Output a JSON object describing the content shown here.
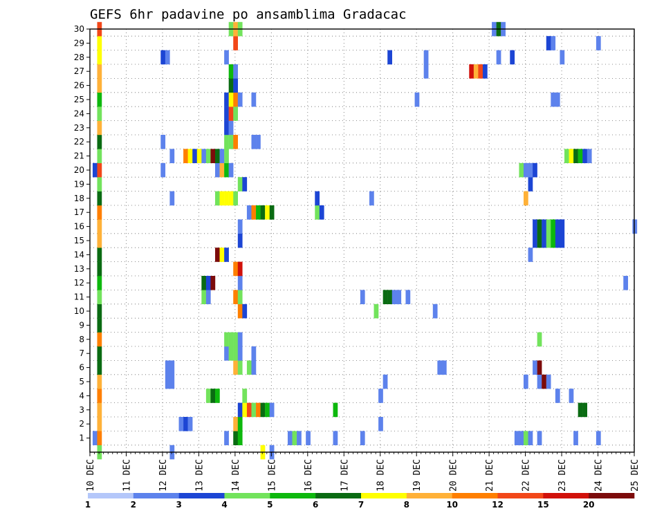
{
  "chart_data": {
    "type": "heatmap",
    "title": "GEFS 6hr padavine po ansamblima Gradacac",
    "x_ticks": [
      "10 DEC",
      "11 DEC",
      "12 DEC",
      "13 DEC",
      "14 DEC",
      "15 DEC",
      "16 DEC",
      "17 DEC",
      "18 DEC",
      "19 DEC",
      "20 DEC",
      "21 DEC",
      "22 DEC",
      "23 DEC",
      "24 DEC",
      "25 DEC"
    ],
    "y_ticks": [
      "1",
      "2",
      "3",
      "4",
      "5",
      "6",
      "7",
      "8",
      "9",
      "10",
      "11",
      "12",
      "13",
      "14",
      "15",
      "16",
      "17",
      "18",
      "19",
      "20",
      "21",
      "22",
      "23",
      "24",
      "25",
      "26",
      "27",
      "28",
      "29",
      "30"
    ],
    "x_range": [
      "10 DEC 00Z",
      "25 DEC 00Z"
    ],
    "y_range": [
      0,
      30
    ],
    "x_step_hours": 6,
    "grid": true,
    "colorbar": {
      "labels": [
        "1",
        "2",
        "3",
        "4",
        "5",
        "6",
        "7",
        "8",
        "10",
        "12",
        "15",
        "20"
      ],
      "colors": [
        "#b4c7fa",
        "#5d82ec",
        "#1c45d4",
        "#72e35c",
        "#0db80d",
        "#0a6b12",
        "#ffff00",
        "#ffb138",
        "#ff7f00",
        "#f24719",
        "#d1110a",
        "#7c0b0b"
      ]
    },
    "cells": [
      [
        -1,
        3
      ],
      [
        0,
        4
      ],
      [
        6,
        1
      ],
      [
        11,
        3
      ],
      [
        -1,
        2
      ],
      [
        0,
        6
      ],
      [
        -1,
        4
      ],
      [
        0,
        6
      ],
      [
        12,
        6
      ],
      [
        15,
        5
      ],
      [
        18,
        7
      ],
      [
        19,
        5
      ],
      [
        20,
        6
      ],
      [
        21,
        5
      ],
      [
        22,
        1
      ],
      [
        23,
        5
      ],
      [
        24,
        2
      ],
      [
        25,
        6
      ],
      [
        26,
        6
      ],
      [
        27,
        6
      ],
      [
        28,
        6
      ],
      [
        -1,
        4
      ],
      [
        0,
        7
      ],
      [
        22,
        3
      ],
      [
        25,
        3
      ],
      [
        27,
        5
      ],
      [
        28,
        3
      ],
      [
        29,
        3
      ],
      [
        30,
        3
      ],
      [
        31,
        3
      ],
      [
        32,
        3
      ],
      [
        37,
        1
      ],
      [
        42,
        1
      ],
      [
        43,
        1
      ],
      [
        44,
        1
      ],
      [
        45,
        1
      ],
      [
        46,
        1
      ],
      [
        52,
        1
      ],
      [
        53,
        1
      ],
      [
        54,
        1
      ],
      [
        55,
        1
      ],
      [
        56,
        1
      ],
      [
        57,
        1
      ],
      [
        58,
        1
      ],
      [
        59,
        1
      ],
      [
        60,
        1
      ],
      [
        61,
        1
      ],
      [
        62,
        1
      ],
      [
        63,
        1
      ],
      [
        64,
        1
      ],
      [
        65,
        1
      ],
      [
        66,
        1
      ],
      [
        67,
        1
      ],
      [
        68,
        1
      ],
      [
        69,
        1
      ],
      [
        70,
        1
      ],
      [
        71,
        1
      ],
      [
        72,
        1
      ],
      [
        73,
        1
      ],
      [
        74,
        1
      ],
      [
        75,
        1
      ],
      [
        76,
        1
      ],
      [
        77,
        1
      ],
      [
        78,
        1
      ],
      [
        79,
        1
      ],
      [
        80,
        1
      ],
      [
        81,
        1
      ],
      [
        82,
        1
      ],
      [
        83,
        1
      ],
      [
        84,
        1
      ],
      [
        85,
        1
      ],
      [
        86,
        1
      ],
      [
        87,
        1
      ],
      [
        88,
        1
      ],
      [
        89,
        1
      ],
      [
        90,
        1
      ],
      [
        91,
        1
      ],
      [
        92,
        1
      ],
      [
        93,
        1
      ],
      [
        94,
        1
      ],
      [
        95,
        1
      ],
      [
        96,
        1
      ],
      [
        97,
        1
      ],
      [
        98,
        1
      ],
      [
        99,
        1
      ],
      [
        100,
        1
      ],
      [
        101,
        1
      ],
      [
        102,
        1
      ],
      [
        103,
        1
      ],
      [
        104,
        1
      ],
      [
        105,
        1
      ],
      [
        106,
        1
      ],
      [
        107,
        1
      ],
      [
        108,
        1
      ],
      [
        109,
        1
      ],
      [
        110,
        1
      ],
      [
        111,
        1
      ],
      [
        112,
        1
      ],
      [
        113,
        1
      ],
      [
        114,
        1
      ],
      [
        115,
        1
      ],
      [
        116,
        1
      ],
      [
        117,
        1
      ],
      [
        118,
        1
      ],
      [
        119,
        1
      ]
    ],
    "rows": {
      "0": [
        [
          1,
          3
        ],
        [
          17,
          1
        ],
        [
          37,
          6
        ],
        [
          39,
          1
        ]
      ],
      "1": [
        [
          0,
          1
        ],
        [
          1,
          8
        ],
        [
          29,
          1
        ],
        [
          31,
          5
        ],
        [
          32,
          4
        ],
        [
          43,
          1
        ],
        [
          44,
          3
        ],
        [
          45,
          1
        ],
        [
          47,
          1
        ],
        [
          53,
          1
        ],
        [
          59,
          1
        ],
        [
          93,
          1
        ],
        [
          94,
          1
        ],
        [
          95,
          3
        ],
        [
          96,
          1
        ],
        [
          98,
          1
        ],
        [
          106,
          1
        ],
        [
          111,
          1
        ]
      ],
      "2": [
        [
          1,
          7
        ],
        [
          19,
          1
        ],
        [
          20,
          2
        ],
        [
          21,
          1
        ],
        [
          31,
          7
        ],
        [
          32,
          4
        ],
        [
          63,
          1
        ]
      ],
      "3": [
        [
          1,
          7
        ],
        [
          32,
          2
        ],
        [
          33,
          6
        ],
        [
          34,
          9
        ],
        [
          35,
          3
        ],
        [
          36,
          8
        ],
        [
          37,
          5
        ],
        [
          38,
          4
        ],
        [
          39,
          1
        ],
        [
          53,
          4
        ],
        [
          107,
          5
        ],
        [
          108,
          5
        ]
      ],
      "4": [
        [
          1,
          8
        ],
        [
          25,
          3
        ],
        [
          26,
          5
        ],
        [
          27,
          4
        ],
        [
          33,
          3
        ],
        [
          63,
          1
        ],
        [
          102,
          1
        ],
        [
          105,
          1
        ]
      ],
      "5": [
        [
          1,
          7
        ],
        [
          16,
          1
        ],
        [
          17,
          1
        ],
        [
          64,
          1
        ],
        [
          95,
          1
        ],
        [
          98,
          1
        ],
        [
          99,
          11
        ],
        [
          100,
          1
        ]
      ],
      "6": [
        [
          1,
          5
        ],
        [
          16,
          1
        ],
        [
          17,
          1
        ],
        [
          31,
          7
        ],
        [
          32,
          3
        ],
        [
          34,
          3
        ],
        [
          35,
          1
        ],
        [
          76,
          1
        ],
        [
          77,
          1
        ],
        [
          97,
          1
        ],
        [
          98,
          11
        ]
      ],
      "7": [
        [
          1,
          5
        ],
        [
          29,
          1
        ],
        [
          30,
          3
        ],
        [
          31,
          3
        ],
        [
          32,
          1
        ],
        [
          35,
          1
        ]
      ],
      "8": [
        [
          1,
          8
        ],
        [
          29,
          3
        ],
        [
          30,
          3
        ],
        [
          31,
          3
        ],
        [
          32,
          1
        ],
        [
          98,
          3
        ]
      ],
      "9": [
        [
          1,
          5
        ]
      ],
      "10": [
        [
          1,
          5
        ],
        [
          32,
          8
        ],
        [
          33,
          2
        ],
        [
          62,
          3
        ],
        [
          75,
          1
        ]
      ],
      "11": [
        [
          1,
          3
        ],
        [
          24,
          3
        ],
        [
          25,
          1
        ],
        [
          31,
          8
        ],
        [
          32,
          3
        ],
        [
          59,
          1
        ],
        [
          64,
          5
        ],
        [
          65,
          5
        ],
        [
          66,
          1
        ],
        [
          67,
          1
        ],
        [
          69,
          1
        ]
      ],
      "12": [
        [
          1,
          4
        ],
        [
          24,
          5
        ],
        [
          25,
          2
        ],
        [
          26,
          11
        ],
        [
          32,
          1
        ],
        [
          117,
          1
        ]
      ],
      "13": [
        [
          1,
          5
        ],
        [
          31,
          8
        ],
        [
          32,
          10
        ]
      ],
      "14": [
        [
          1,
          5
        ],
        [
          27,
          11
        ],
        [
          28,
          6
        ],
        [
          29,
          2
        ],
        [
          96,
          1
        ]
      ],
      "15": [
        [
          1,
          7
        ],
        [
          32,
          2
        ],
        [
          97,
          2
        ],
        [
          98,
          5
        ],
        [
          99,
          2
        ],
        [
          100,
          3
        ],
        [
          101,
          4
        ],
        [
          102,
          2
        ],
        [
          103,
          2
        ]
      ],
      "16": [
        [
          1,
          7
        ],
        [
          32,
          1
        ],
        [
          97,
          2
        ],
        [
          98,
          5
        ],
        [
          99,
          2
        ],
        [
          100,
          3
        ],
        [
          101,
          4
        ],
        [
          102,
          2
        ],
        [
          103,
          2
        ],
        [
          119,
          1
        ]
      ],
      "17": [
        [
          1,
          8
        ],
        [
          34,
          1
        ],
        [
          35,
          8
        ],
        [
          36,
          4
        ],
        [
          37,
          5
        ],
        [
          38,
          6
        ],
        [
          39,
          5
        ],
        [
          49,
          3
        ],
        [
          50,
          2
        ]
      ],
      "18": [
        [
          1,
          5
        ],
        [
          17,
          1
        ],
        [
          27,
          3
        ],
        [
          28,
          6
        ],
        [
          29,
          6
        ],
        [
          30,
          6
        ],
        [
          31,
          3
        ],
        [
          49,
          2
        ],
        [
          61,
          1
        ],
        [
          95,
          7
        ]
      ],
      "19": [
        [
          1,
          3
        ],
        [
          32,
          3
        ],
        [
          33,
          2
        ],
        [
          96,
          2
        ]
      ],
      "20": [
        [
          0,
          2
        ],
        [
          1,
          9
        ],
        [
          15,
          1
        ],
        [
          27,
          1
        ],
        [
          28,
          7
        ],
        [
          29,
          4
        ],
        [
          30,
          1
        ],
        [
          94,
          3
        ],
        [
          95,
          1
        ],
        [
          96,
          1
        ],
        [
          97,
          2
        ]
      ],
      "21": [
        [
          1,
          3
        ],
        [
          17,
          1
        ],
        [
          20,
          8
        ],
        [
          21,
          6
        ],
        [
          22,
          2
        ],
        [
          23,
          6
        ],
        [
          24,
          1
        ],
        [
          25,
          3
        ],
        [
          26,
          11
        ],
        [
          27,
          5
        ],
        [
          28,
          1
        ],
        [
          29,
          3
        ],
        [
          104,
          3
        ],
        [
          105,
          6
        ],
        [
          106,
          5
        ],
        [
          107,
          4
        ],
        [
          108,
          2
        ],
        [
          109,
          1
        ]
      ],
      "22": [
        [
          1,
          5
        ],
        [
          15,
          1
        ],
        [
          29,
          3
        ],
        [
          30,
          3
        ],
        [
          31,
          8
        ],
        [
          35,
          1
        ],
        [
          36,
          1
        ]
      ],
      "23": [
        [
          1,
          7
        ],
        [
          29,
          2
        ],
        [
          30,
          1
        ]
      ],
      "24": [
        [
          1,
          3
        ],
        [
          29,
          2
        ],
        [
          30,
          9
        ],
        [
          31,
          3
        ]
      ],
      "25": [
        [
          1,
          4
        ],
        [
          29,
          2
        ],
        [
          30,
          6
        ],
        [
          31,
          8
        ],
        [
          32,
          1
        ],
        [
          35,
          1
        ],
        [
          71,
          1
        ],
        [
          101,
          1
        ],
        [
          102,
          1
        ]
      ],
      "26": [
        [
          1,
          7
        ],
        [
          30,
          5
        ],
        [
          31,
          2
        ]
      ],
      "27": [
        [
          1,
          7
        ],
        [
          30,
          4
        ],
        [
          31,
          1
        ],
        [
          73,
          1
        ],
        [
          83,
          10
        ],
        [
          84,
          7
        ],
        [
          85,
          9
        ],
        [
          86,
          2
        ]
      ],
      "28": [
        [
          1,
          6
        ],
        [
          15,
          2
        ],
        [
          16,
          1
        ],
        [
          29,
          1
        ],
        [
          65,
          2
        ],
        [
          73,
          1
        ],
        [
          89,
          1
        ],
        [
          92,
          2
        ],
        [
          103,
          1
        ]
      ],
      "29": [
        [
          1,
          6
        ],
        [
          31,
          9
        ],
        [
          100,
          2
        ],
        [
          101,
          1
        ],
        [
          111,
          1
        ]
      ],
      "30": [
        [
          1,
          9
        ],
        [
          30,
          3
        ],
        [
          31,
          7
        ],
        [
          32,
          3
        ],
        [
          88,
          1
        ],
        [
          89,
          5
        ],
        [
          90,
          1
        ]
      ]
    }
  }
}
